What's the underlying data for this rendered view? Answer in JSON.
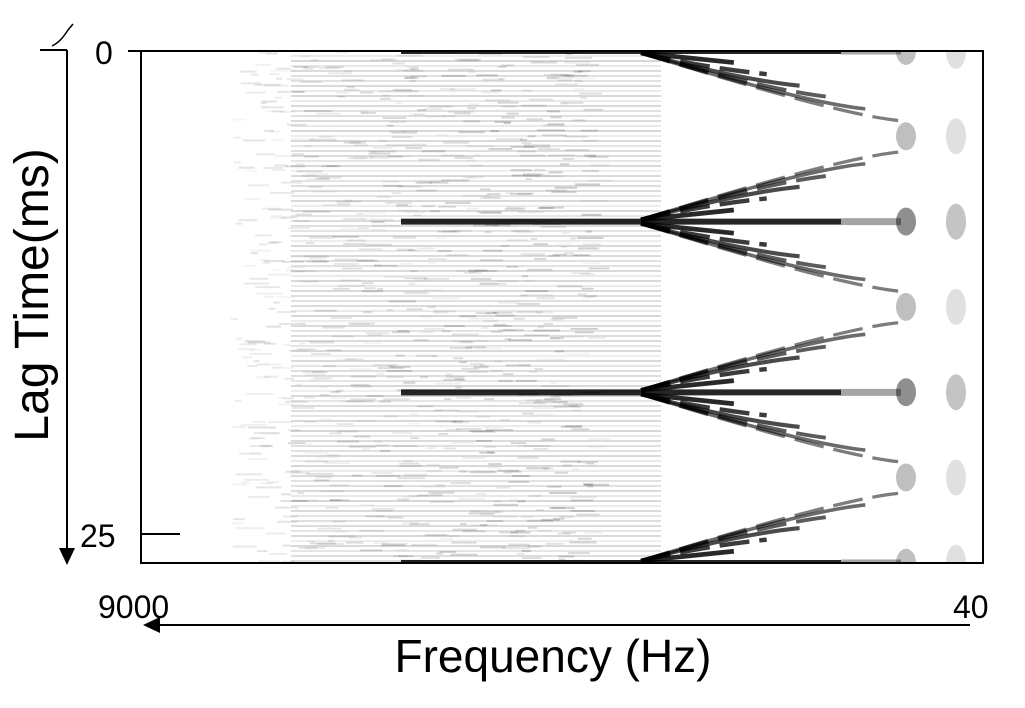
{
  "chart_data": {
    "type": "heatmap",
    "title": "",
    "xlabel": "Frequency (Hz)",
    "ylabel": "Lag Time(ms)",
    "x_tick_labels": [
      "9000",
      "40"
    ],
    "y_tick_labels": [
      "0",
      "25"
    ],
    "xlim": [
      9000,
      40
    ],
    "ylim": [
      0,
      25
    ],
    "x_direction": "decreasing left-to-right",
    "y_direction": "increasing downward",
    "colormap": "grayscale (white = low, black = high)",
    "grid": false,
    "legend": "none",
    "pitch_period_ms": 8.33,
    "band_peak_lags_ms": [
      0,
      8.33,
      16.67,
      25
    ],
    "harmonic_bands": {
      "description": "Dark horizontal bands at multiples of the pitch period; at low frequencies they fan out into V-shaped branches converging toward the right edge",
      "low_frequency_branch_count_per_period": 6
    },
    "colors": {
      "ink": "#000000",
      "background": "#ffffff"
    }
  }
}
